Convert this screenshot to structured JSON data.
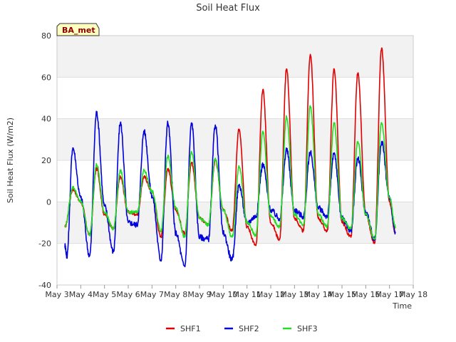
{
  "chart_data": {
    "type": "line",
    "title": "Soil Heat Flux",
    "xlabel": "Time",
    "ylabel": "Soil Heat Flux (W/m2)",
    "ylim": [
      -40,
      80
    ],
    "yticks": [
      -40,
      -20,
      0,
      20,
      40,
      60,
      80
    ],
    "xlim": [
      "May 3",
      "May 18"
    ],
    "xticks": [
      "May 3",
      "May 4",
      "May 5",
      "May 6",
      "May 7",
      "May 8",
      "May 9",
      "May 10",
      "May 11",
      "May 12",
      "May 13",
      "May 14",
      "May 15",
      "May 16",
      "May 17",
      "May 18"
    ],
    "background_bands": true,
    "legend_position": "bottom-center",
    "badge": "BA_met",
    "series": [
      {
        "name": "SHF1",
        "color": "#e00000",
        "points": [
          [
            "May 3 08:00",
            -12
          ],
          [
            "May 3 16:00",
            6
          ],
          [
            "May 4 00:00",
            0
          ],
          [
            "May 4 09:00",
            -16
          ],
          [
            "May 4 16:00",
            16
          ],
          [
            "May 5 00:00",
            -6
          ],
          [
            "May 5 09:00",
            -13
          ],
          [
            "May 5 16:00",
            12
          ],
          [
            "May 6 00:00",
            -5
          ],
          [
            "May 6 09:00",
            -6
          ],
          [
            "May 6 16:00",
            12
          ],
          [
            "May 7 00:00",
            5
          ],
          [
            "May 7 09:00",
            -17
          ],
          [
            "May 7 16:00",
            16
          ],
          [
            "May 8 00:00",
            -4
          ],
          [
            "May 8 09:00",
            -15
          ],
          [
            "May 8 16:00",
            19
          ],
          [
            "May 9 00:00",
            -8
          ],
          [
            "May 9 09:00",
            -11
          ],
          [
            "May 9 16:00",
            20
          ],
          [
            "May 10 00:00",
            -4
          ],
          [
            "May 10 09:00",
            -14
          ],
          [
            "May 10 16:00",
            35
          ],
          [
            "May 11 00:00",
            -12
          ],
          [
            "May 11 09:00",
            -21
          ],
          [
            "May 11 16:00",
            54
          ],
          [
            "May 12 00:00",
            -10
          ],
          [
            "May 12 09:00",
            -18
          ],
          [
            "May 12 16:00",
            64
          ],
          [
            "May 13 00:00",
            -8
          ],
          [
            "May 13 09:00",
            -14
          ],
          [
            "May 13 16:00",
            71
          ],
          [
            "May 14 00:00",
            -8
          ],
          [
            "May 14 09:00",
            -14
          ],
          [
            "May 14 16:00",
            64
          ],
          [
            "May 15 00:00",
            -10
          ],
          [
            "May 15 09:00",
            -17
          ],
          [
            "May 15 16:00",
            62
          ],
          [
            "May 16 00:00",
            -6
          ],
          [
            "May 16 09:00",
            -20
          ],
          [
            "May 16 16:00",
            74
          ],
          [
            "May 17 00:00",
            0
          ],
          [
            "May 17 06:00",
            -15
          ]
        ]
      },
      {
        "name": "SHF2",
        "color": "#0000dd",
        "points": [
          [
            "May 3 08:00",
            -21
          ],
          [
            "May 3 10:00",
            -26
          ],
          [
            "May 3 16:00",
            26
          ],
          [
            "May 4 00:00",
            2
          ],
          [
            "May 4 09:00",
            -26
          ],
          [
            "May 4 16:00",
            43
          ],
          [
            "May 5 00:00",
            -2
          ],
          [
            "May 5 09:00",
            -24
          ],
          [
            "May 5 16:00",
            38
          ],
          [
            "May 6 00:00",
            -10
          ],
          [
            "May 6 09:00",
            -11
          ],
          [
            "May 6 16:00",
            34
          ],
          [
            "May 7 00:00",
            3
          ],
          [
            "May 7 09:00",
            -28
          ],
          [
            "May 7 16:00",
            38
          ],
          [
            "May 8 00:00",
            -15
          ],
          [
            "May 8 09:00",
            -31
          ],
          [
            "May 8 16:00",
            38
          ],
          [
            "May 9 00:00",
            -17
          ],
          [
            "May 9 09:00",
            -18
          ],
          [
            "May 9 16:00",
            37
          ],
          [
            "May 10 00:00",
            -15
          ],
          [
            "May 10 09:00",
            -28
          ],
          [
            "May 10 16:00",
            8
          ],
          [
            "May 11 00:00",
            -10
          ],
          [
            "May 11 09:00",
            -7
          ],
          [
            "May 11 16:00",
            18
          ],
          [
            "May 12 00:00",
            -4
          ],
          [
            "May 12 09:00",
            -8
          ],
          [
            "May 12 16:00",
            25
          ],
          [
            "May 13 00:00",
            -4
          ],
          [
            "May 13 09:00",
            -7
          ],
          [
            "May 13 16:00",
            24
          ],
          [
            "May 14 00:00",
            -3
          ],
          [
            "May 14 09:00",
            -7
          ],
          [
            "May 14 16:00",
            23
          ],
          [
            "May 15 00:00",
            -8
          ],
          [
            "May 15 09:00",
            -14
          ],
          [
            "May 15 16:00",
            21
          ],
          [
            "May 16 00:00",
            -5
          ],
          [
            "May 16 09:00",
            -18
          ],
          [
            "May 16 16:00",
            29
          ],
          [
            "May 17 00:00",
            2
          ],
          [
            "May 17 06:00",
            -15
          ]
        ]
      },
      {
        "name": "SHF3",
        "color": "#22dd22",
        "points": [
          [
            "May 3 08:00",
            -12
          ],
          [
            "May 3 16:00",
            7
          ],
          [
            "May 4 00:00",
            0
          ],
          [
            "May 4 09:00",
            -16
          ],
          [
            "May 4 16:00",
            18
          ],
          [
            "May 5 00:00",
            -5
          ],
          [
            "May 5 09:00",
            -13
          ],
          [
            "May 5 16:00",
            15
          ],
          [
            "May 6 00:00",
            -5
          ],
          [
            "May 6 09:00",
            -5
          ],
          [
            "May 6 16:00",
            15
          ],
          [
            "May 7 00:00",
            5
          ],
          [
            "May 7 09:00",
            -14
          ],
          [
            "May 7 16:00",
            22
          ],
          [
            "May 8 00:00",
            -3
          ],
          [
            "May 8 09:00",
            -17
          ],
          [
            "May 8 16:00",
            24
          ],
          [
            "May 9 00:00",
            -8
          ],
          [
            "May 9 09:00",
            -11
          ],
          [
            "May 9 16:00",
            21
          ],
          [
            "May 10 00:00",
            -4
          ],
          [
            "May 10 09:00",
            -17
          ],
          [
            "May 10 16:00",
            17
          ],
          [
            "May 11 00:00",
            -10
          ],
          [
            "May 11 09:00",
            -16
          ],
          [
            "May 11 16:00",
            34
          ],
          [
            "May 12 00:00",
            -7
          ],
          [
            "May 12 09:00",
            -12
          ],
          [
            "May 12 16:00",
            41
          ],
          [
            "May 13 00:00",
            -6
          ],
          [
            "May 13 09:00",
            -11
          ],
          [
            "May 13 16:00",
            46
          ],
          [
            "May 14 00:00",
            -6
          ],
          [
            "May 14 09:00",
            -12
          ],
          [
            "May 14 16:00",
            38
          ],
          [
            "May 15 00:00",
            -8
          ],
          [
            "May 15 09:00",
            -13
          ],
          [
            "May 15 16:00",
            29
          ],
          [
            "May 16 00:00",
            -6
          ],
          [
            "May 16 09:00",
            -18
          ],
          [
            "May 16 16:00",
            38
          ],
          [
            "May 17 00:00",
            2
          ],
          [
            "May 17 06:00",
            -12
          ]
        ]
      }
    ]
  }
}
